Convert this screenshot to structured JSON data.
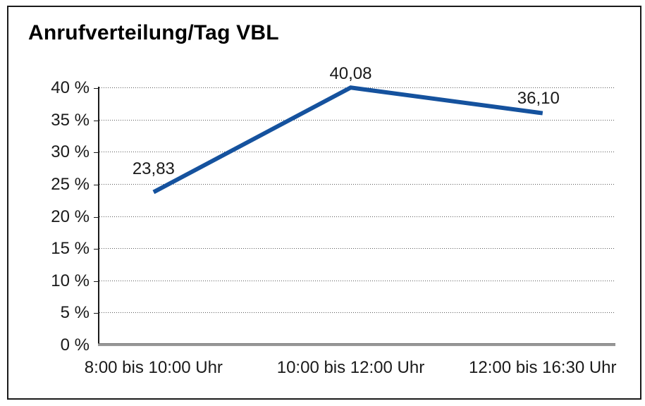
{
  "chart": {
    "title": "Anrufverteilung/Tag VBL"
  },
  "chart_data": {
    "type": "line",
    "title": "Anrufverteilung/Tag VBL",
    "categories": [
      "8:00 bis 10:00 Uhr",
      "10:00 bis 12:00 Uhr",
      "12:00 bis 16:30 Uhr"
    ],
    "series": [
      {
        "name": "Anrufverteilung",
        "values": [
          23.83,
          40.08,
          36.1
        ],
        "value_labels": [
          "23,83",
          "40,08",
          "36,10"
        ]
      }
    ],
    "ylim": [
      0,
      40
    ],
    "ytick_step": 5,
    "ytick_labels": [
      "0 %",
      "5 %",
      "10 %",
      "15 %",
      "20 %",
      "25 %",
      "30 %",
      "35 %",
      "40 %"
    ],
    "xlabel": "",
    "ylabel": "",
    "grid": "horizontal-dotted",
    "legend": "none",
    "markers": "none",
    "colors": {
      "line": "#15529e",
      "grid": "#5a5a5a",
      "axis": "#1a1a1a",
      "baseline": "#9a9a9a",
      "text": "#1a1a1a",
      "background": "#ffffff",
      "border": "#1a1a1a"
    }
  }
}
